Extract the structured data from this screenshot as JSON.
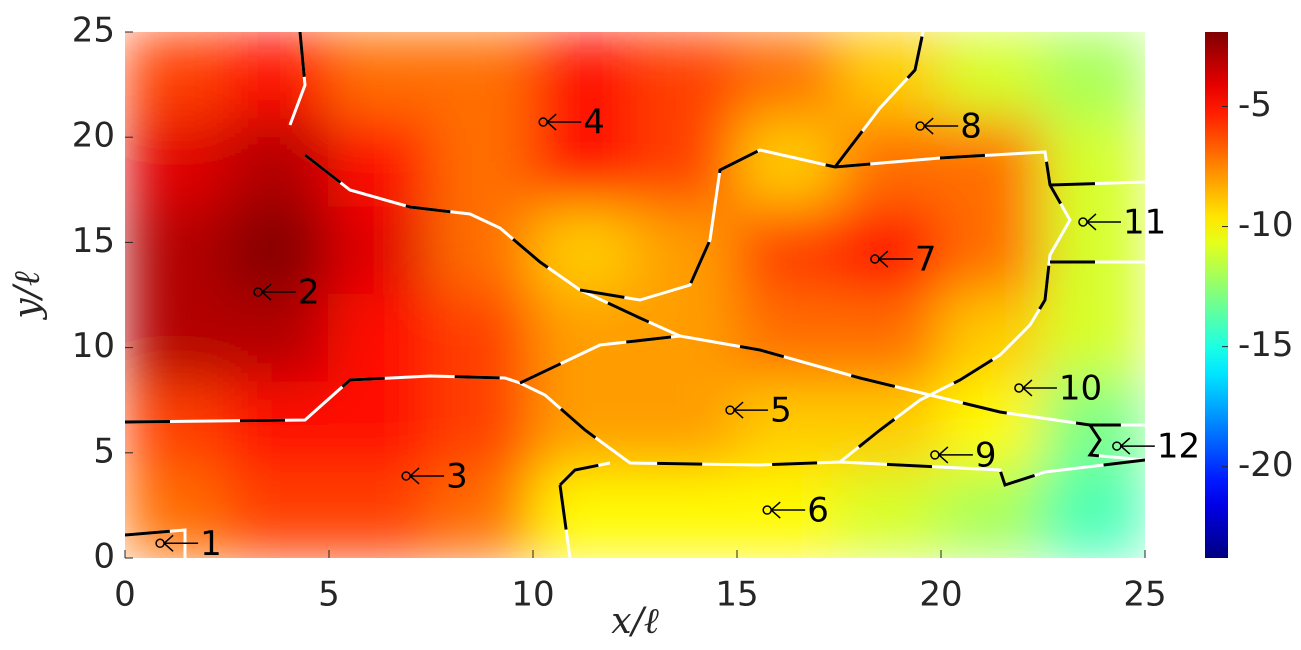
{
  "chart_data": {
    "type": "heatmap",
    "xlabel": "x/ℓ",
    "ylabel": "y/ℓ",
    "xlim": [
      0,
      25
    ],
    "ylim": [
      0,
      25
    ],
    "xticks": [
      0,
      5,
      10,
      15,
      20,
      25
    ],
    "yticks": [
      0,
      5,
      10,
      15,
      20,
      25
    ],
    "z": [
      [
        -6,
        -5,
        -7,
        -7,
        -5,
        -6,
        -7,
        -9,
        -11,
        -12
      ],
      [
        -4,
        -3,
        -5,
        -7,
        -5,
        -6,
        -9,
        -7,
        -7,
        -11
      ],
      [
        -3,
        -2,
        -4,
        -7,
        -9,
        -8,
        -6,
        -5,
        -7,
        -11
      ],
      [
        -3,
        -3,
        -5,
        -6,
        -8,
        -8,
        -7,
        -7,
        -9,
        -11
      ],
      [
        -6,
        -5,
        -5,
        -6,
        -8,
        -8,
        -9,
        -9,
        -10,
        -13
      ],
      [
        -7,
        -6,
        -6,
        -7,
        -10,
        -10,
        -10,
        -11,
        -12,
        -14
      ]
    ],
    "clim": [
      -23.8,
      -1.9
    ],
    "colorbar_ticks": [
      -5,
      -10,
      -15,
      -20
    ],
    "markers": [
      {
        "label": "1",
        "x": 0.86,
        "y": 0.7
      },
      {
        "label": "2",
        "x": 3.26,
        "y": 12.64
      },
      {
        "label": "3",
        "x": 6.89,
        "y": 3.9
      },
      {
        "label": "4",
        "x": 10.25,
        "y": 20.72
      },
      {
        "label": "5",
        "x": 14.83,
        "y": 7.03
      },
      {
        "label": "6",
        "x": 15.74,
        "y": 2.28
      },
      {
        "label": "7",
        "x": 18.38,
        "y": 14.21
      },
      {
        "label": "8",
        "x": 19.49,
        "y": 20.53
      },
      {
        "label": "9",
        "x": 19.85,
        "y": 4.9
      },
      {
        "label": "10",
        "x": 21.91,
        "y": 8.08
      },
      {
        "label": "11",
        "x": 23.48,
        "y": 15.97
      },
      {
        "label": "12",
        "x": 24.31,
        "y": 5.32
      }
    ]
  }
}
